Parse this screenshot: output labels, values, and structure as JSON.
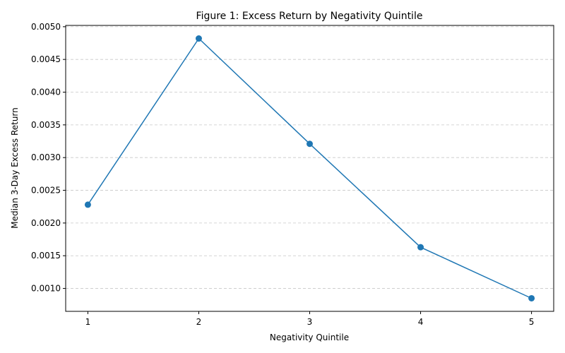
{
  "chart_data": {
    "type": "line",
    "title": "Figure 1: Excess Return by Negativity Quintile",
    "xlabel": "Negativity Quintile",
    "ylabel": "Median 3-Day Excess Return",
    "x": [
      1,
      2,
      3,
      4,
      5
    ],
    "values": [
      0.00228,
      0.00482,
      0.00321,
      0.00163,
      0.00085
    ],
    "xlim": [
      0.8,
      5.2
    ],
    "ylim": [
      0.00065,
      0.00502
    ],
    "xticks": [
      "1",
      "2",
      "3",
      "4",
      "5"
    ],
    "yticks": [
      0.001,
      0.0015,
      0.002,
      0.0025,
      0.003,
      0.0035,
      0.004,
      0.0045,
      0.005
    ],
    "ytick_labels": [
      "0.0010",
      "0.0015",
      "0.0020",
      "0.0025",
      "0.0030",
      "0.0035",
      "0.0040",
      "0.0045",
      "0.0050"
    ],
    "grid": "horizontal dashed",
    "line_color": "#1f77b4",
    "grid_color": "#c8c8c8",
    "marker": "circle"
  }
}
